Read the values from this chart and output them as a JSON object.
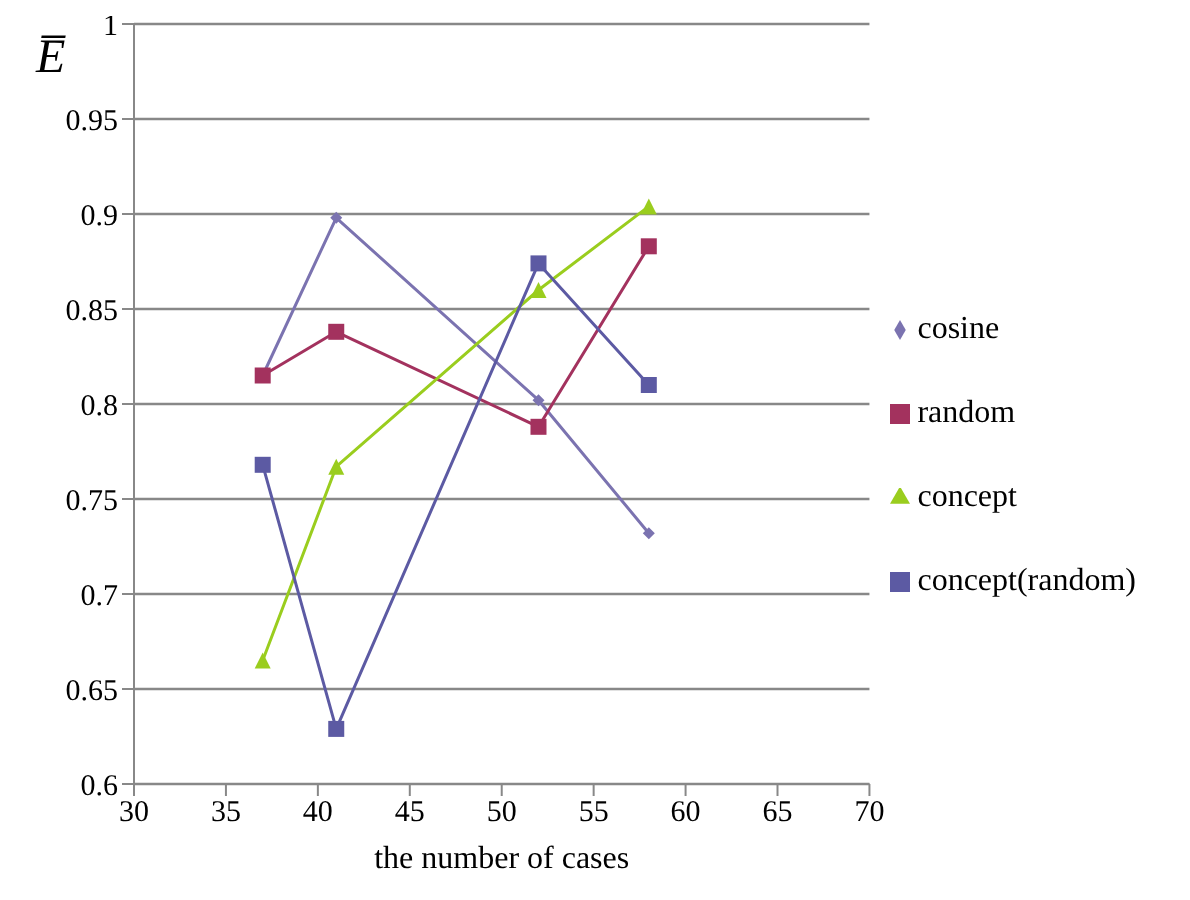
{
  "chart_data": {
    "type": "line",
    "ylabel": "E̅",
    "xlabel": "the number of cases",
    "x": [
      37,
      41,
      52,
      58
    ],
    "series": [
      {
        "name": "cosine",
        "color": "#7b73b0",
        "marker": "diamond",
        "values": [
          0.815,
          0.898,
          0.802,
          0.732
        ]
      },
      {
        "name": "random",
        "color": "#a3325e",
        "marker": "square",
        "values": [
          0.815,
          0.838,
          0.788,
          0.883
        ]
      },
      {
        "name": "concept",
        "color": "#9acd1e",
        "marker": "triangle",
        "values": [
          0.665,
          0.767,
          0.86,
          0.904
        ]
      },
      {
        "name": "concept(random)",
        "color": "#5c5aa3",
        "marker": "square",
        "values": [
          0.768,
          0.629,
          0.874,
          0.81
        ]
      }
    ],
    "xlim": [
      30,
      70
    ],
    "xticks": [
      30,
      35,
      40,
      45,
      50,
      55,
      60,
      65,
      70
    ],
    "ylim": [
      0.6,
      1
    ],
    "yticks": [
      0.6,
      0.65,
      0.7,
      0.75,
      0.8,
      0.85,
      0.9,
      0.95,
      1
    ],
    "grid": "y",
    "legend": "right",
    "line_style": "solid"
  }
}
